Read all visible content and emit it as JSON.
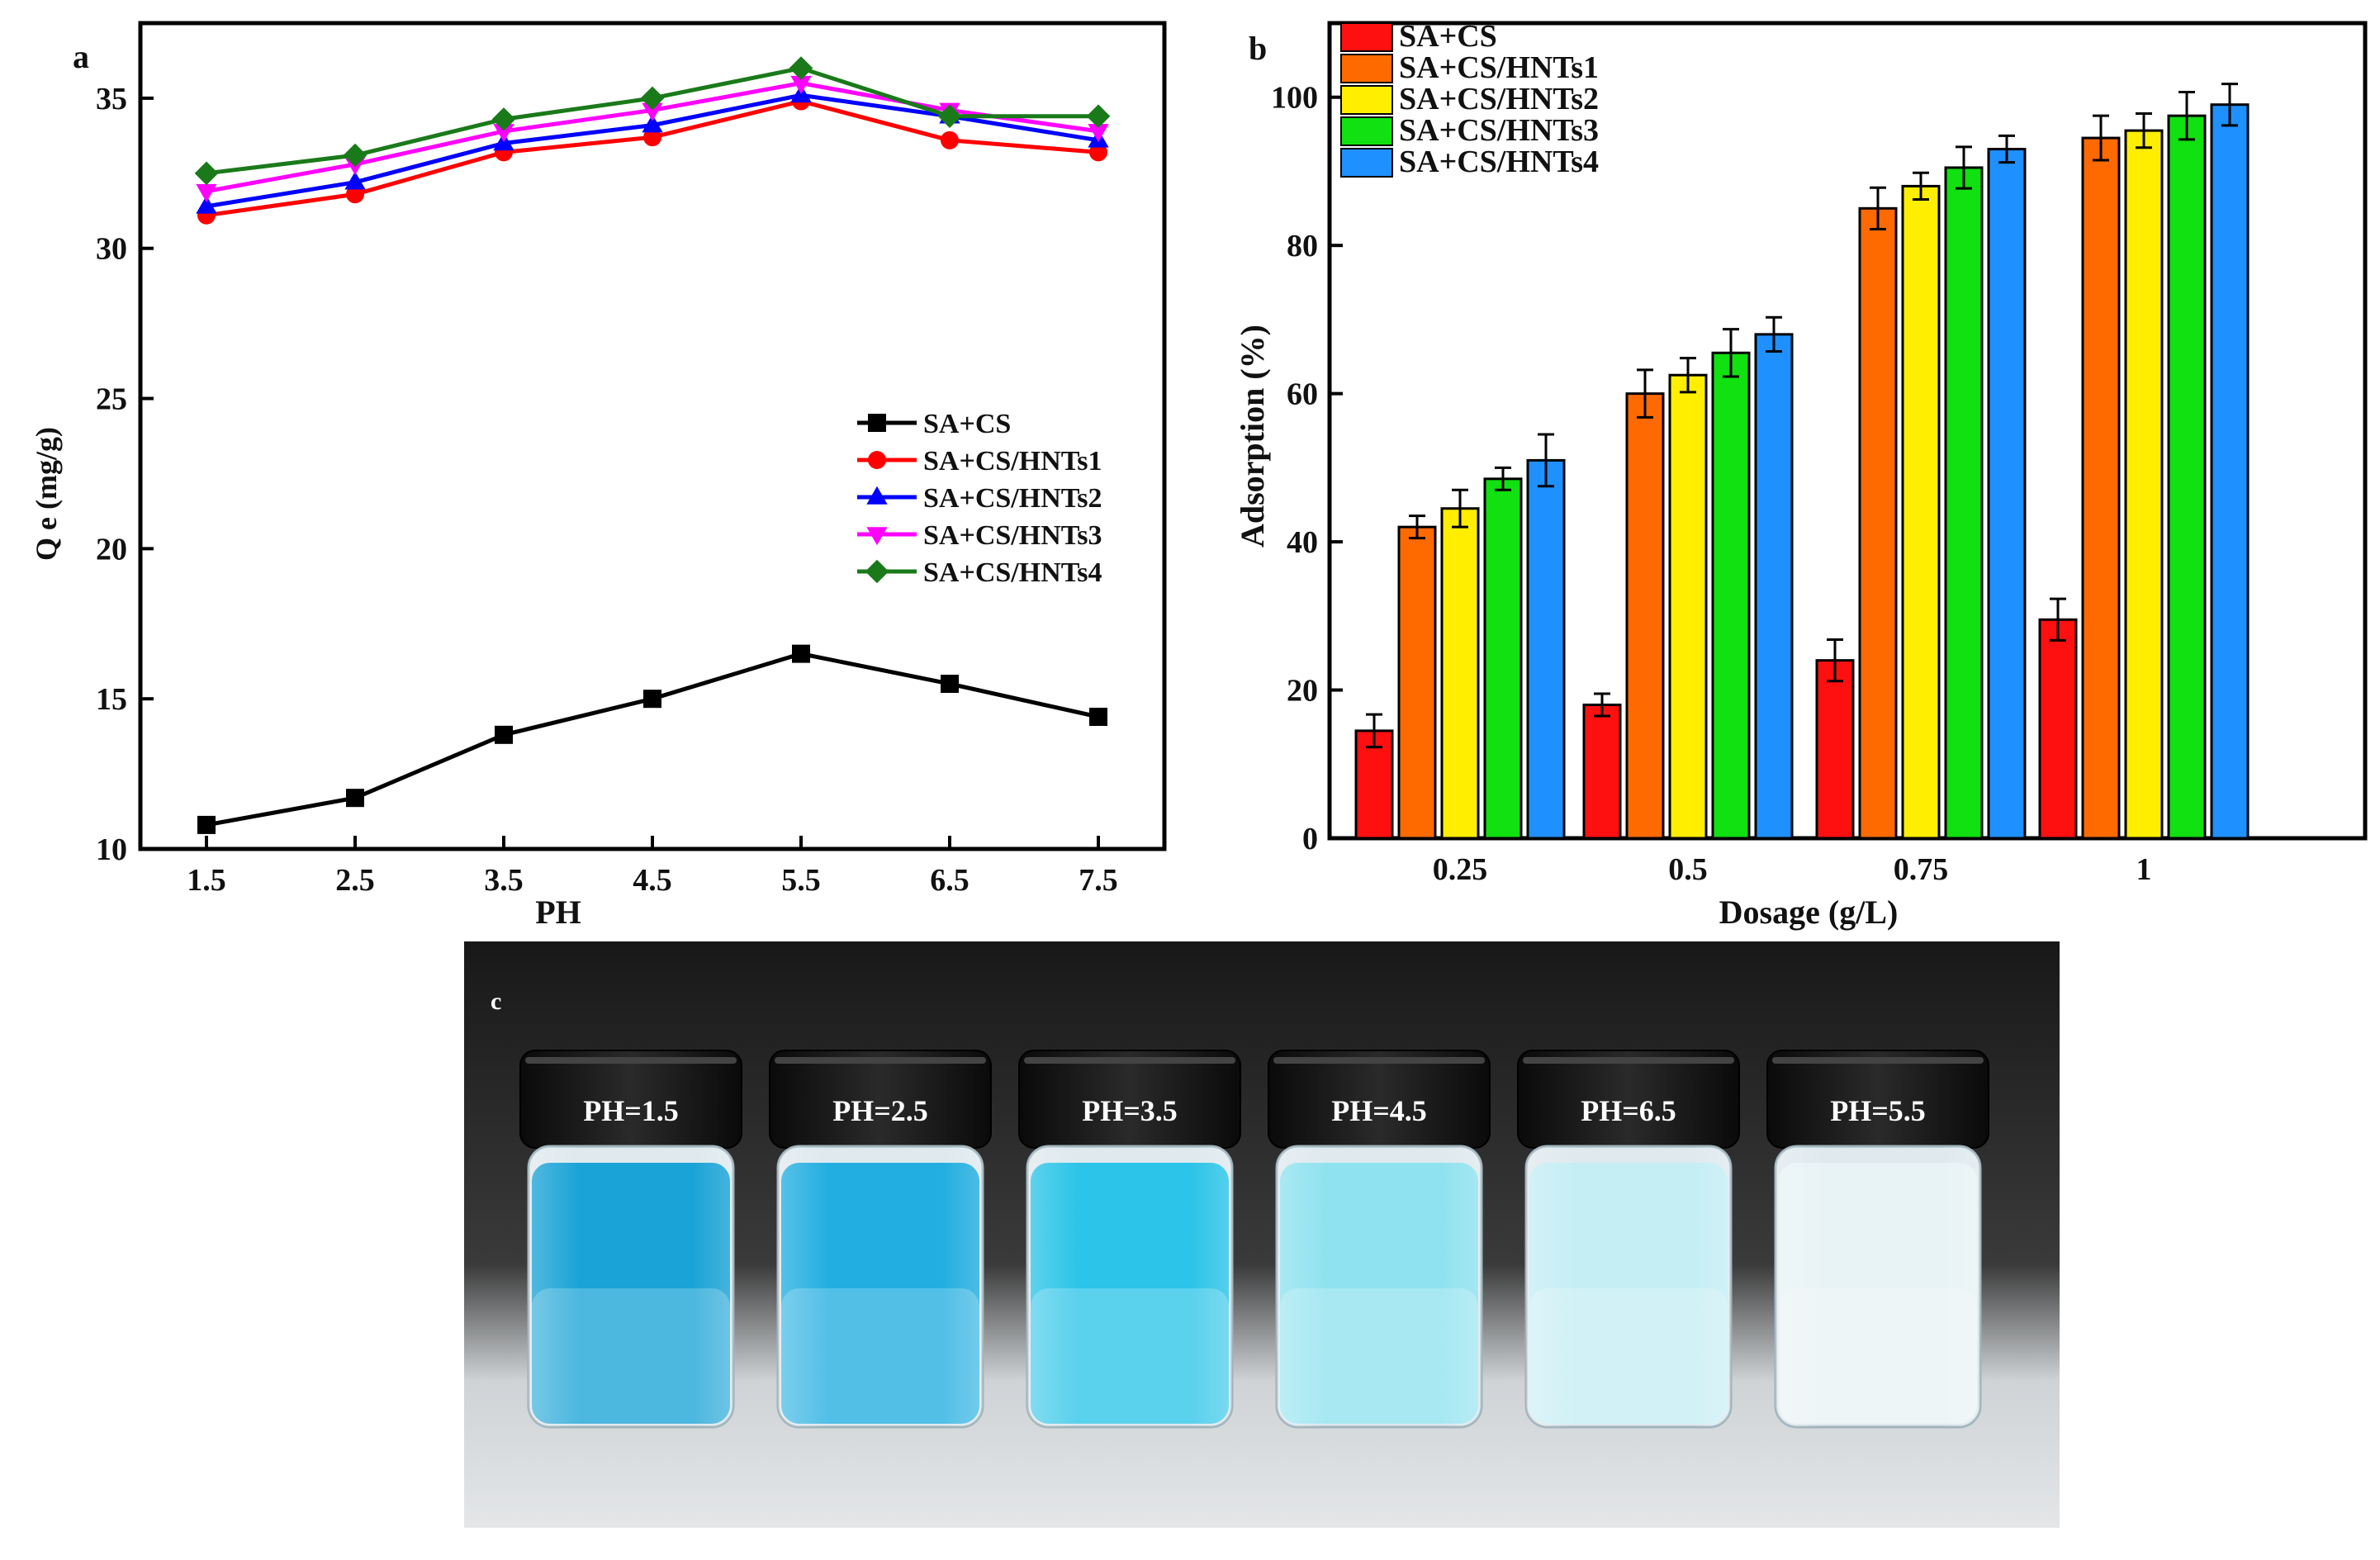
{
  "chart_data": [
    {
      "panel_label": "a",
      "type": "line",
      "xlabel": "PH",
      "ylabel": "Q e (mg/g)",
      "x": [
        1.5,
        2.5,
        3.5,
        4.5,
        5.5,
        6.5,
        7.5
      ],
      "xticks": [
        "1.5",
        "2.5",
        "3.5",
        "4.5",
        "5.5",
        "6.5",
        "7.5"
      ],
      "ylim": [
        10,
        37.5
      ],
      "yticks": [
        10,
        15,
        20,
        25,
        30,
        35
      ],
      "legend_position": "center-right",
      "series": [
        {
          "name": "SA+CS",
          "color": "#000000",
          "marker": "square",
          "values": [
            10.8,
            11.7,
            13.8,
            15.0,
            16.5,
            15.5,
            14.4
          ]
        },
        {
          "name": "SA+CS/HNTs1",
          "color": "#ff0000",
          "marker": "circle",
          "values": [
            31.1,
            31.8,
            33.2,
            33.7,
            34.9,
            33.6,
            33.2
          ]
        },
        {
          "name": "SA+CS/HNTs2",
          "color": "#0000ff",
          "marker": "triangle-up",
          "values": [
            31.4,
            32.2,
            33.5,
            34.1,
            35.1,
            34.4,
            33.6
          ]
        },
        {
          "name": "SA+CS/HNTs3",
          "color": "#ff00ff",
          "marker": "triangle-down",
          "values": [
            31.9,
            32.8,
            33.9,
            34.6,
            35.5,
            34.6,
            33.9
          ]
        },
        {
          "name": "SA+CS/HNTs4",
          "color": "#1a7a1a",
          "marker": "diamond",
          "values": [
            32.5,
            33.1,
            34.3,
            35.0,
            36.0,
            34.4,
            34.4
          ]
        }
      ]
    },
    {
      "panel_label": "b",
      "type": "bar",
      "xlabel": "Dosage (g/L)",
      "ylabel": "Adsorption (%)",
      "categories": [
        "0.25",
        "0.5",
        "0.75",
        "1"
      ],
      "ylim": [
        0,
        110
      ],
      "yticks": [
        0,
        20,
        40,
        60,
        80,
        100
      ],
      "legend_position": "top-left",
      "series": [
        {
          "name": "SA+CS",
          "color": "#ff1010",
          "values": [
            14.5,
            18,
            24,
            29.5
          ],
          "errors": [
            2.2,
            1.5,
            2.8,
            2.8
          ]
        },
        {
          "name": "SA+CS/HNTs1",
          "color": "#ff6a00",
          "values": [
            42,
            60,
            85,
            94.5
          ],
          "errors": [
            1.5,
            3.2,
            2.8,
            3.0
          ]
        },
        {
          "name": "SA+CS/HNTs2",
          "color": "#ffee00",
          "values": [
            44.5,
            62.5,
            88,
            95.5
          ],
          "errors": [
            2.5,
            2.3,
            1.8,
            2.3
          ]
        },
        {
          "name": "SA+CS/HNTs3",
          "color": "#11e011",
          "values": [
            48.5,
            65.5,
            90.5,
            97.5
          ],
          "errors": [
            1.5,
            3.2,
            2.8,
            3.2
          ]
        },
        {
          "name": "SA+CS/HNTs4",
          "color": "#1e90ff",
          "values": [
            51,
            68,
            93,
            99
          ],
          "errors": [
            3.5,
            2.3,
            1.8,
            2.8
          ]
        }
      ]
    }
  ],
  "photo": {
    "panel_label": "c",
    "vials": [
      {
        "label": "PH=1.5",
        "liquid": "#1aa3d6"
      },
      {
        "label": "PH=2.5",
        "liquid": "#22aee0"
      },
      {
        "label": "PH=3.5",
        "liquid": "#2cc4e8"
      },
      {
        "label": "PH=4.5",
        "liquid": "#8fe2ef"
      },
      {
        "label": "PH=6.5",
        "liquid": "#c4eef4"
      },
      {
        "label": "PH=5.5",
        "liquid": "#e8f3f5"
      }
    ]
  }
}
